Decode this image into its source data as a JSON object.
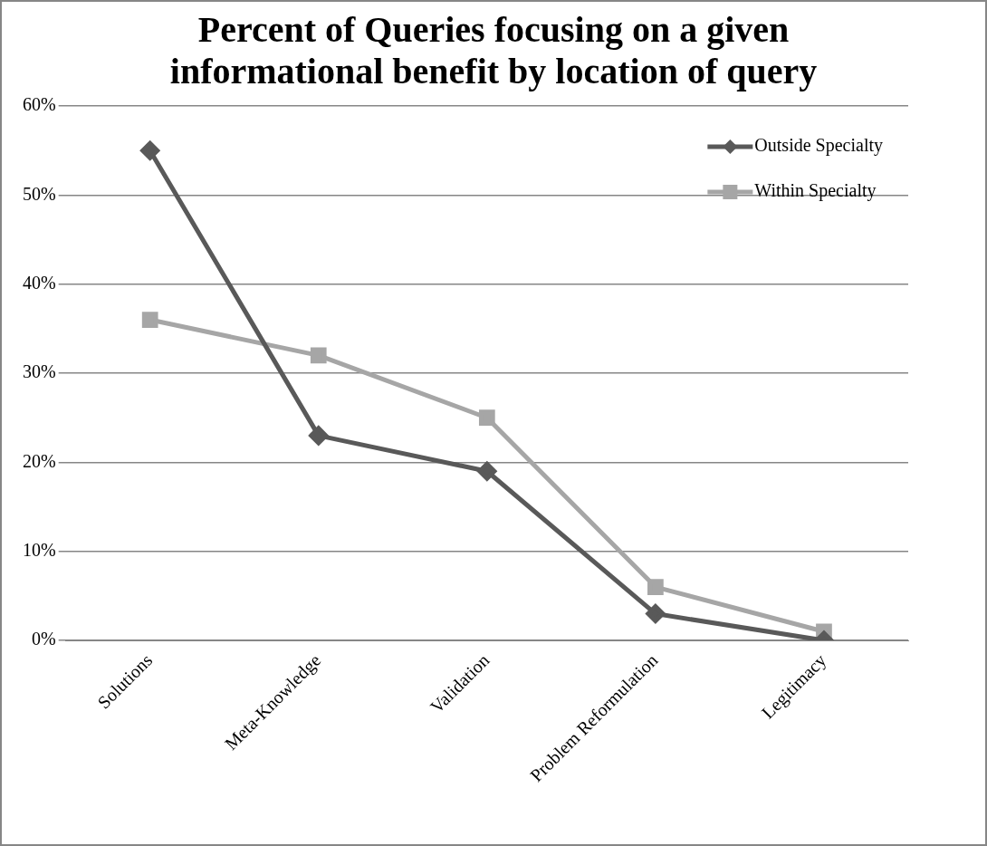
{
  "chart_data": {
    "type": "line",
    "title": "Percent of Queries focusing on a given informational benefit by location of query",
    "categories": [
      "Solutions",
      "Meta-Knowledge",
      "Validation",
      "Problem Reformulation",
      "Legitimacy"
    ],
    "series": [
      {
        "name": "Outside Specialty",
        "color": "#595959",
        "marker": "diamond",
        "values": [
          55,
          23,
          19,
          3,
          0
        ]
      },
      {
        "name": "Within Specialty",
        "color": "#a6a6a6",
        "marker": "square",
        "values": [
          36,
          32,
          25,
          6,
          1
        ]
      }
    ],
    "ylim": [
      0,
      60
    ],
    "yticks": [
      {
        "value": 0,
        "label": "0%"
      },
      {
        "value": 10,
        "label": "10%"
      },
      {
        "value": 20,
        "label": "20%"
      },
      {
        "value": 30,
        "label": "30%"
      },
      {
        "value": 40,
        "label": "40%"
      },
      {
        "value": 50,
        "label": "50%"
      },
      {
        "value": 60,
        "label": "60%"
      }
    ],
    "grid": "y",
    "legend": "top right",
    "line_style": "solid"
  }
}
